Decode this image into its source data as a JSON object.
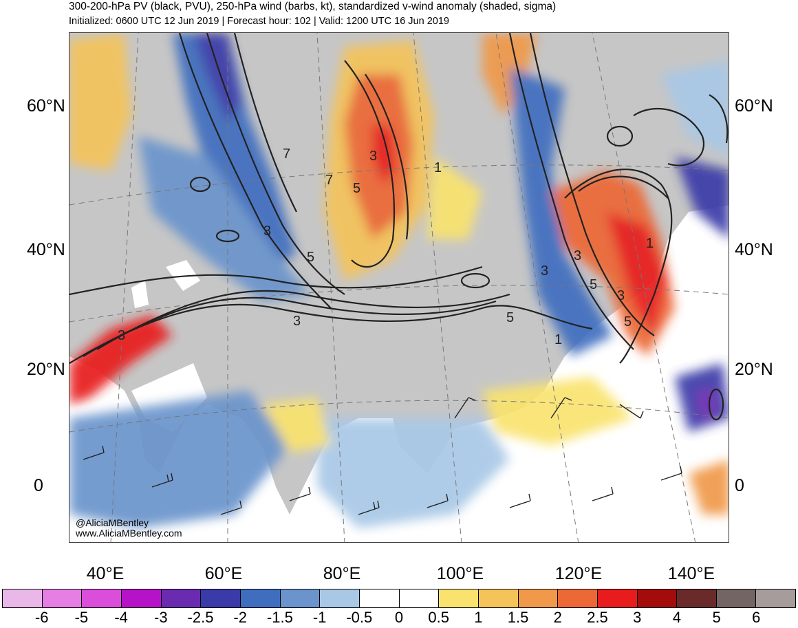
{
  "header": {
    "title": "300-200-hPa PV (black, PVU), 250-hPa wind (barbs, kt), standardized v-wind anomaly (shaded, sigma)",
    "subtitle": "Initialized: 0600 UTC 12 Jun 2019 | Forecast hour: 102 | Valid: 1200 UTC 16 Jun 2019"
  },
  "map": {
    "lat_labels": [
      "60°N",
      "40°N",
      "20°N",
      "0"
    ],
    "lon_labels": [
      "40°E",
      "60°E",
      "80°E",
      "100°E",
      "120°E",
      "140°E"
    ],
    "contour_labels": [
      "3",
      "7",
      "7",
      "5",
      "1",
      "3",
      "5",
      "3",
      "3",
      "5",
      "3",
      "3",
      "5",
      "1",
      "3",
      "5",
      "1"
    ],
    "credit_handle": "@AliciaMBentley",
    "credit_url": "www.AliciaMBentley.com"
  },
  "colorbar": {
    "colors": [
      "#eab8e8",
      "#e67fe4",
      "#db4ddb",
      "#b613c9",
      "#6b2bb0",
      "#3a3aa8",
      "#3f6ebf",
      "#6b94cc",
      "#a8c8e6",
      "#ffffff",
      "#ffffff",
      "#f9e36e",
      "#f4c35a",
      "#f0994a",
      "#ec6836",
      "#e81c1c",
      "#a40b0b",
      "#6b2a2a",
      "#736563",
      "#a79c9c"
    ],
    "labels": [
      "-6",
      "-5",
      "-4",
      "-3",
      "-2.5",
      "-2",
      "-1.5",
      "-1",
      "-0.5",
      "0",
      "0.5",
      "1",
      "1.5",
      "2",
      "2.5",
      "3",
      "4",
      "5",
      "6"
    ]
  },
  "colors": {
    "land": "#c6c6c6",
    "ocean": "#ffffff",
    "contour": "#222222"
  }
}
